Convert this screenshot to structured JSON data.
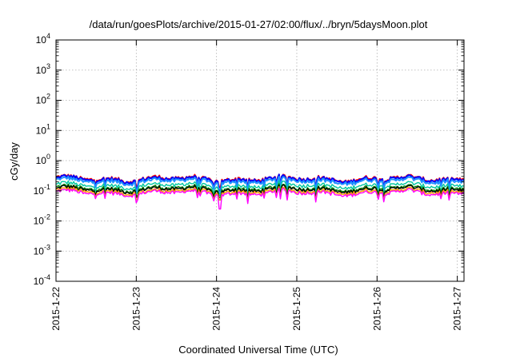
{
  "chart_data": {
    "type": "line",
    "title": "/data/run/goesPlots/archive/2015-01-27/02:00/flux/../bryn/5daysMoon.plot",
    "xlabel": "Coordinated Universal Time (UTC)",
    "ylabel": "cGy/day",
    "y_scale": "log",
    "ylim": [
      0.0001,
      10000
    ],
    "y_ticks": [
      {
        "base": "10",
        "exp": "4",
        "value": 10000
      },
      {
        "base": "10",
        "exp": "3",
        "value": 1000
      },
      {
        "base": "10",
        "exp": "2",
        "value": 100
      },
      {
        "base": "10",
        "exp": "1",
        "value": 10
      },
      {
        "base": "10",
        "exp": "0",
        "value": 1
      },
      {
        "base": "10",
        "exp": "-1",
        "value": 0.1
      },
      {
        "base": "10",
        "exp": "-2",
        "value": 0.01
      },
      {
        "base": "10",
        "exp": "-3",
        "value": 0.001
      },
      {
        "base": "10",
        "exp": "-4",
        "value": 0.0001
      }
    ],
    "x_ticks": [
      "2015-1-22",
      "2015-1-23",
      "2015-1-24",
      "2015-1-25",
      "2015-1-26",
      "2015-1-27"
    ],
    "xlim": [
      "2015-01-22 00:00",
      "2015-01-27 02:00"
    ],
    "grid": true,
    "legend": "none",
    "series": [
      {
        "color": "#ff0000",
        "level": 0.25,
        "dips": [
          {
            "x": "2015-01-23 00:00",
            "value": 0.14
          },
          {
            "x": "2015-01-24 01:00",
            "value": 0.13
          }
        ]
      },
      {
        "color": "#0000ff",
        "level": 0.24,
        "dips": [
          {
            "x": "2015-01-23 00:00",
            "value": 0.1
          },
          {
            "x": "2015-01-24 01:00",
            "value": 0.1
          }
        ]
      },
      {
        "color": "#1e90ff",
        "level": 0.21,
        "dips": [
          {
            "x": "2015-01-23 00:00",
            "value": 0.09
          },
          {
            "x": "2015-01-24 01:00",
            "value": 0.08
          }
        ]
      },
      {
        "color": "#00c8a0",
        "level": 0.15,
        "dips": [
          {
            "x": "2015-01-23 00:00",
            "value": 0.08
          },
          {
            "x": "2015-01-24 01:00",
            "value": 0.07
          }
        ]
      },
      {
        "color": "#008000",
        "level": 0.12,
        "dips": [
          {
            "x": "2015-01-23 00:00",
            "value": 0.07
          },
          {
            "x": "2015-01-24 01:00",
            "value": 0.06
          }
        ]
      },
      {
        "color": "#000000",
        "level": 0.11,
        "dips": [
          {
            "x": "2015-01-23 00:00",
            "value": 0.06
          },
          {
            "x": "2015-01-24 01:00",
            "value": 0.05
          }
        ]
      },
      {
        "color": "#ffa500",
        "level": 0.095,
        "dips": [
          {
            "x": "2015-01-23 00:00",
            "value": 0.05
          },
          {
            "x": "2015-01-24 01:00",
            "value": 0.05
          }
        ]
      },
      {
        "color": "#ff00ff",
        "level": 0.085,
        "dips": [
          {
            "x": "2015-01-23 00:00",
            "value": 0.04
          },
          {
            "x": "2015-01-24 01:00",
            "value": 0.025
          }
        ]
      }
    ]
  }
}
